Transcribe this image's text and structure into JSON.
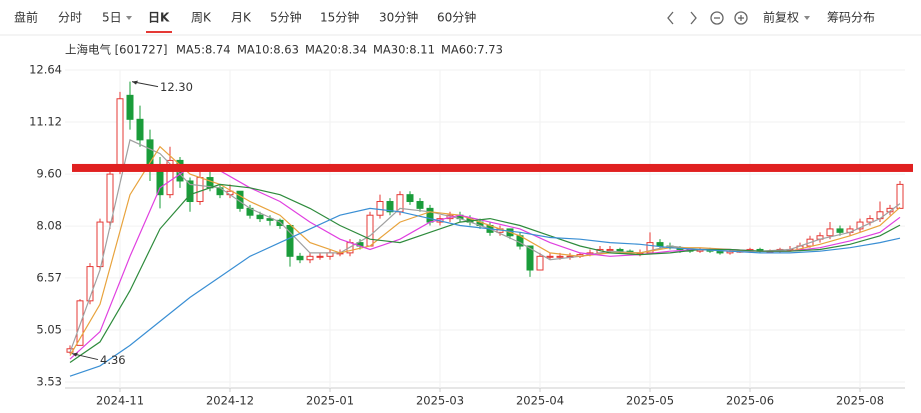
{
  "toolbar": {
    "tabs": [
      "盘前",
      "分时",
      "5日",
      "日K",
      "周K",
      "月K",
      "5分钟",
      "15分钟",
      "30分钟",
      "60分钟"
    ],
    "active": 3,
    "right": [
      "前复权",
      "筹码分布"
    ]
  },
  "chart_data": {
    "type": "candlestick",
    "stock": "上海电气 [601727]",
    "up_color": "#e53935",
    "down_color": "#1a9c3a",
    "ohlc": [
      [
        4.4,
        4.6,
        4.36,
        4.5
      ],
      [
        4.6,
        5.95,
        4.6,
        5.9
      ],
      [
        5.9,
        7.0,
        5.8,
        6.9
      ],
      [
        6.9,
        8.3,
        6.8,
        8.2
      ],
      [
        8.2,
        9.7,
        8.0,
        9.6
      ],
      [
        9.8,
        12.0,
        9.6,
        11.8
      ],
      [
        11.9,
        12.3,
        10.9,
        11.2
      ],
      [
        11.2,
        11.6,
        10.4,
        10.6
      ],
      [
        10.6,
        10.9,
        9.4,
        9.7
      ],
      [
        9.8,
        10.1,
        8.6,
        9.0
      ],
      [
        9.0,
        10.4,
        8.9,
        10.0
      ],
      [
        10.0,
        10.1,
        9.2,
        9.4
      ],
      [
        9.4,
        9.5,
        8.5,
        8.8
      ],
      [
        8.8,
        9.8,
        8.7,
        9.5
      ],
      [
        9.5,
        9.7,
        9.1,
        9.2
      ],
      [
        9.2,
        9.3,
        8.9,
        9.0
      ],
      [
        9.0,
        9.3,
        8.9,
        9.1
      ],
      [
        9.1,
        9.1,
        8.5,
        8.6
      ],
      [
        8.6,
        8.7,
        8.3,
        8.4
      ],
      [
        8.4,
        8.5,
        8.2,
        8.3
      ],
      [
        8.3,
        8.4,
        8.1,
        8.25
      ],
      [
        8.25,
        8.3,
        8.0,
        8.1
      ],
      [
        8.1,
        8.1,
        6.9,
        7.2
      ],
      [
        7.2,
        7.3,
        7.0,
        7.1
      ],
      [
        7.1,
        7.3,
        7.0,
        7.2
      ],
      [
        7.2,
        7.3,
        7.1,
        7.2
      ],
      [
        7.2,
        7.4,
        7.1,
        7.3
      ],
      [
        7.3,
        7.4,
        7.2,
        7.3
      ],
      [
        7.3,
        7.7,
        7.2,
        7.6
      ],
      [
        7.6,
        7.7,
        7.4,
        7.5
      ],
      [
        7.5,
        8.5,
        7.5,
        8.4
      ],
      [
        8.4,
        9.0,
        8.3,
        8.8
      ],
      [
        8.8,
        8.9,
        8.4,
        8.5
      ],
      [
        8.5,
        9.1,
        8.4,
        9.0
      ],
      [
        9.0,
        9.1,
        8.7,
        8.8
      ],
      [
        8.8,
        8.9,
        8.5,
        8.6
      ],
      [
        8.6,
        8.7,
        8.1,
        8.2
      ],
      [
        8.2,
        8.4,
        8.1,
        8.3
      ],
      [
        8.3,
        8.5,
        8.2,
        8.4
      ],
      [
        8.4,
        8.5,
        8.2,
        8.3
      ],
      [
        8.3,
        8.4,
        8.1,
        8.2
      ],
      [
        8.2,
        8.3,
        8.0,
        8.1
      ],
      [
        8.1,
        8.2,
        7.8,
        7.9
      ],
      [
        7.9,
        8.1,
        7.8,
        8.0
      ],
      [
        8.0,
        8.0,
        7.7,
        7.8
      ],
      [
        7.8,
        7.9,
        7.4,
        7.5
      ],
      [
        7.5,
        7.5,
        6.6,
        6.8
      ],
      [
        6.8,
        7.3,
        6.8,
        7.2
      ],
      [
        7.2,
        7.3,
        7.1,
        7.2
      ],
      [
        7.2,
        7.3,
        7.1,
        7.2
      ],
      [
        7.2,
        7.3,
        7.1,
        7.2
      ],
      [
        7.2,
        7.3,
        7.15,
        7.25
      ],
      [
        7.25,
        7.4,
        7.2,
        7.3
      ],
      [
        7.3,
        7.5,
        7.25,
        7.4
      ],
      [
        7.4,
        7.5,
        7.3,
        7.4
      ],
      [
        7.4,
        7.45,
        7.3,
        7.35
      ],
      [
        7.35,
        7.4,
        7.25,
        7.3
      ],
      [
        7.3,
        7.4,
        7.2,
        7.3
      ],
      [
        7.3,
        7.9,
        7.3,
        7.6
      ],
      [
        7.6,
        7.7,
        7.4,
        7.5
      ],
      [
        7.5,
        7.6,
        7.4,
        7.45
      ],
      [
        7.45,
        7.5,
        7.3,
        7.4
      ],
      [
        7.4,
        7.45,
        7.3,
        7.35
      ],
      [
        7.35,
        7.45,
        7.3,
        7.4
      ],
      [
        7.4,
        7.45,
        7.3,
        7.35
      ],
      [
        7.35,
        7.4,
        7.25,
        7.3
      ],
      [
        7.3,
        7.4,
        7.25,
        7.35
      ],
      [
        7.35,
        7.4,
        7.3,
        7.35
      ],
      [
        7.35,
        7.45,
        7.3,
        7.4
      ],
      [
        7.4,
        7.45,
        7.3,
        7.35
      ],
      [
        7.35,
        7.4,
        7.3,
        7.35
      ],
      [
        7.35,
        7.45,
        7.3,
        7.4
      ],
      [
        7.4,
        7.5,
        7.35,
        7.4
      ],
      [
        7.4,
        7.6,
        7.35,
        7.5
      ],
      [
        7.5,
        7.8,
        7.45,
        7.7
      ],
      [
        7.7,
        7.9,
        7.6,
        7.8
      ],
      [
        7.8,
        8.2,
        7.7,
        8.0
      ],
      [
        8.0,
        8.1,
        7.8,
        7.9
      ],
      [
        7.9,
        8.1,
        7.8,
        8.0
      ],
      [
        8.0,
        8.3,
        7.9,
        8.2
      ],
      [
        8.2,
        8.4,
        8.1,
        8.3
      ],
      [
        8.3,
        8.8,
        8.2,
        8.5
      ],
      [
        8.5,
        8.7,
        8.4,
        8.6
      ],
      [
        8.6,
        9.4,
        8.6,
        9.3
      ]
    ],
    "series": [
      {
        "name": "MA5",
        "label": "MA5:8.74",
        "color": "#a0a0a0",
        "x": [
          0,
          3,
          6,
          9,
          12,
          15,
          18,
          21,
          24,
          27,
          30,
          33,
          36,
          39,
          42,
          45,
          48,
          51,
          54,
          57,
          60,
          63,
          66,
          69,
          72,
          75,
          78,
          81,
          83
        ],
        "values": [
          4.4,
          6.8,
          10.6,
          10.2,
          9.3,
          9.2,
          8.6,
          8.2,
          7.3,
          7.3,
          7.8,
          8.6,
          8.5,
          8.3,
          8.0,
          7.6,
          7.1,
          7.2,
          7.35,
          7.3,
          7.5,
          7.4,
          7.35,
          7.35,
          7.4,
          7.7,
          7.9,
          8.3,
          8.74
        ]
      },
      {
        "name": "MA10",
        "label": "MA10:8.63",
        "color": "#e8a33d",
        "x": [
          0,
          3,
          6,
          9,
          12,
          15,
          18,
          21,
          24,
          27,
          30,
          33,
          36,
          39,
          42,
          45,
          48,
          51,
          54,
          57,
          60,
          63,
          66,
          69,
          72,
          75,
          78,
          81,
          83
        ],
        "values": [
          4.3,
          5.8,
          9.0,
          10.4,
          9.6,
          9.3,
          8.8,
          8.4,
          7.6,
          7.3,
          7.5,
          8.2,
          8.5,
          8.4,
          8.1,
          7.8,
          7.3,
          7.2,
          7.3,
          7.3,
          7.45,
          7.45,
          7.4,
          7.35,
          7.35,
          7.55,
          7.8,
          8.1,
          8.63
        ]
      },
      {
        "name": "MA20",
        "label": "MA20:8.34",
        "color": "#e040e0",
        "x": [
          0,
          3,
          6,
          9,
          12,
          15,
          18,
          21,
          24,
          27,
          30,
          33,
          36,
          39,
          42,
          45,
          48,
          51,
          54,
          57,
          60,
          63,
          66,
          69,
          72,
          75,
          78,
          81,
          83
        ],
        "values": [
          4.2,
          5.0,
          7.2,
          9.2,
          9.8,
          9.7,
          9.2,
          8.8,
          8.2,
          7.7,
          7.4,
          7.7,
          8.2,
          8.4,
          8.2,
          8.0,
          7.6,
          7.3,
          7.2,
          7.25,
          7.35,
          7.4,
          7.4,
          7.35,
          7.35,
          7.45,
          7.65,
          7.9,
          8.34
        ]
      },
      {
        "name": "MA30",
        "label": "MA30:8.11",
        "color": "#2e8b3c",
        "x": [
          0,
          3,
          6,
          9,
          12,
          15,
          18,
          21,
          24,
          27,
          30,
          33,
          36,
          39,
          42,
          45,
          48,
          51,
          54,
          57,
          60,
          63,
          66,
          69,
          72,
          75,
          78,
          81,
          83
        ],
        "values": [
          4.1,
          4.7,
          6.2,
          8.0,
          9.0,
          9.3,
          9.2,
          9.0,
          8.6,
          8.1,
          7.7,
          7.6,
          7.9,
          8.2,
          8.3,
          8.1,
          7.8,
          7.5,
          7.3,
          7.25,
          7.3,
          7.4,
          7.4,
          7.35,
          7.35,
          7.4,
          7.55,
          7.8,
          8.11
        ]
      },
      {
        "name": "MA60",
        "label": "MA60:7.73",
        "color": "#3a8fd4",
        "x": [
          0,
          3,
          6,
          9,
          12,
          15,
          18,
          21,
          24,
          27,
          30,
          33,
          36,
          39,
          42,
          45,
          48,
          51,
          54,
          57,
          60,
          63,
          66,
          69,
          72,
          75,
          78,
          81,
          83
        ],
        "values": [
          3.7,
          4.0,
          4.6,
          5.3,
          6.0,
          6.6,
          7.2,
          7.6,
          8.0,
          8.4,
          8.6,
          8.5,
          8.3,
          8.1,
          8.0,
          7.9,
          7.75,
          7.7,
          7.6,
          7.55,
          7.45,
          7.4,
          7.35,
          7.3,
          7.3,
          7.35,
          7.45,
          7.6,
          7.73
        ]
      }
    ],
    "annotations": [
      {
        "value": 12.3,
        "label": "12.30",
        "x": 6
      },
      {
        "value": 4.36,
        "label": "4.36",
        "x": 0
      }
    ],
    "hline": {
      "value": 9.78,
      "color": "#e02020"
    },
    "xlim": [
      -0.5,
      83.5
    ],
    "xticks": [
      {
        "value": 5,
        "label": "2024-11"
      },
      {
        "value": 16,
        "label": "2024-12"
      },
      {
        "value": 26,
        "label": "2025-01"
      },
      {
        "value": 37,
        "label": "2025-03"
      },
      {
        "value": 47,
        "label": "2025-04"
      },
      {
        "value": 58,
        "label": "2025-05"
      },
      {
        "value": 68,
        "label": "2025-06"
      },
      {
        "value": 79,
        "label": "2025-08"
      }
    ],
    "ylim": [
      3.53,
      12.64
    ],
    "yticks": [
      12.64,
      11.12,
      {
        "value": 9.6,
        "label": "9.60"
      },
      8.08,
      6.57,
      5.05,
      3.53
    ],
    "grid": true
  }
}
